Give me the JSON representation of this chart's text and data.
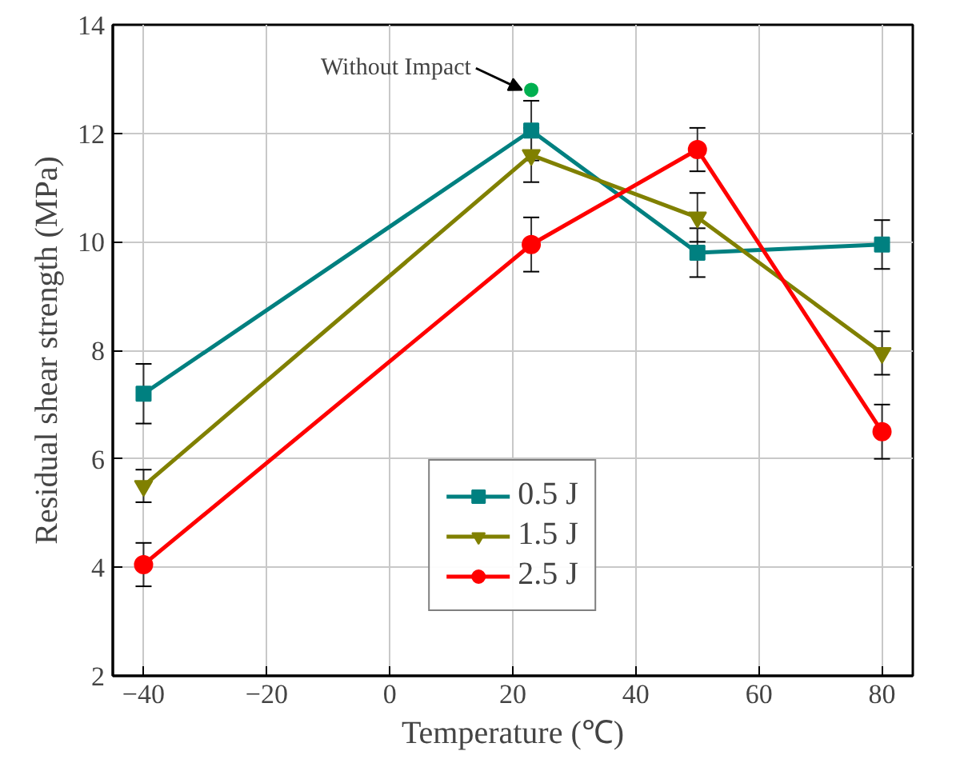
{
  "chart_data": {
    "type": "line",
    "xlabel": "Temperature (℃)",
    "ylabel": "Residual shear strength (MPa)",
    "x": [
      -40,
      23,
      50,
      80
    ],
    "xlim": [
      -45,
      85
    ],
    "xticks": [
      -40,
      -20,
      0,
      20,
      40,
      60,
      80
    ],
    "ylim": [
      2,
      14
    ],
    "yticks": [
      2,
      4,
      6,
      8,
      10,
      12,
      14
    ],
    "grid": true,
    "legend": "bottom",
    "line_style": "solid",
    "series": [
      {
        "name": "0.5 J",
        "color": "#008080",
        "marker": "square",
        "values": [
          7.2,
          12.05,
          9.8,
          9.95
        ],
        "errors": [
          0.55,
          0.55,
          0.45,
          0.45
        ]
      },
      {
        "name": "1.5 J",
        "color": "#808000",
        "marker": "triangle",
        "values": [
          5.5,
          11.6,
          10.45,
          7.95
        ],
        "errors": [
          0.3,
          0.5,
          0.45,
          0.4
        ]
      },
      {
        "name": "2.5 J",
        "color": "#ff0000",
        "marker": "circle",
        "values": [
          4.05,
          9.95,
          11.7,
          6.5
        ],
        "errors": [
          0.4,
          0.5,
          0.4,
          0.5
        ]
      },
      {
        "type": "scatter",
        "color": "#00b050",
        "marker": "circle",
        "x": [
          23
        ],
        "values": [
          12.8
        ]
      }
    ],
    "annotations": [
      {
        "text": "Without Impact",
        "x": 23,
        "y": 12.8
      }
    ]
  }
}
